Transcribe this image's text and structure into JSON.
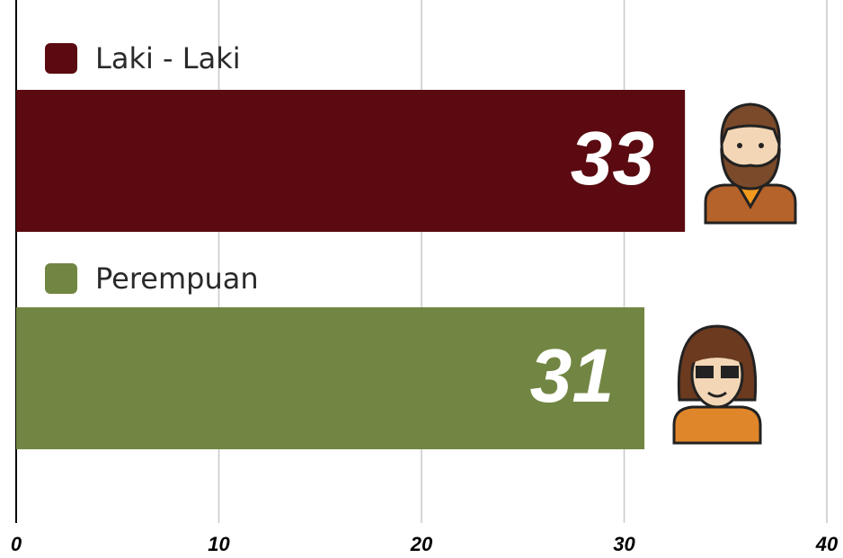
{
  "chart_data": {
    "type": "bar",
    "orientation": "horizontal",
    "categories": [
      "Laki - Laki",
      "Perempuan"
    ],
    "values": [
      33,
      31
    ],
    "colors": [
      "#5a0a10",
      "#728643"
    ],
    "xlim": [
      0,
      40
    ],
    "xticks": [
      0,
      10,
      20,
      30,
      40
    ],
    "grid": true
  }
}
